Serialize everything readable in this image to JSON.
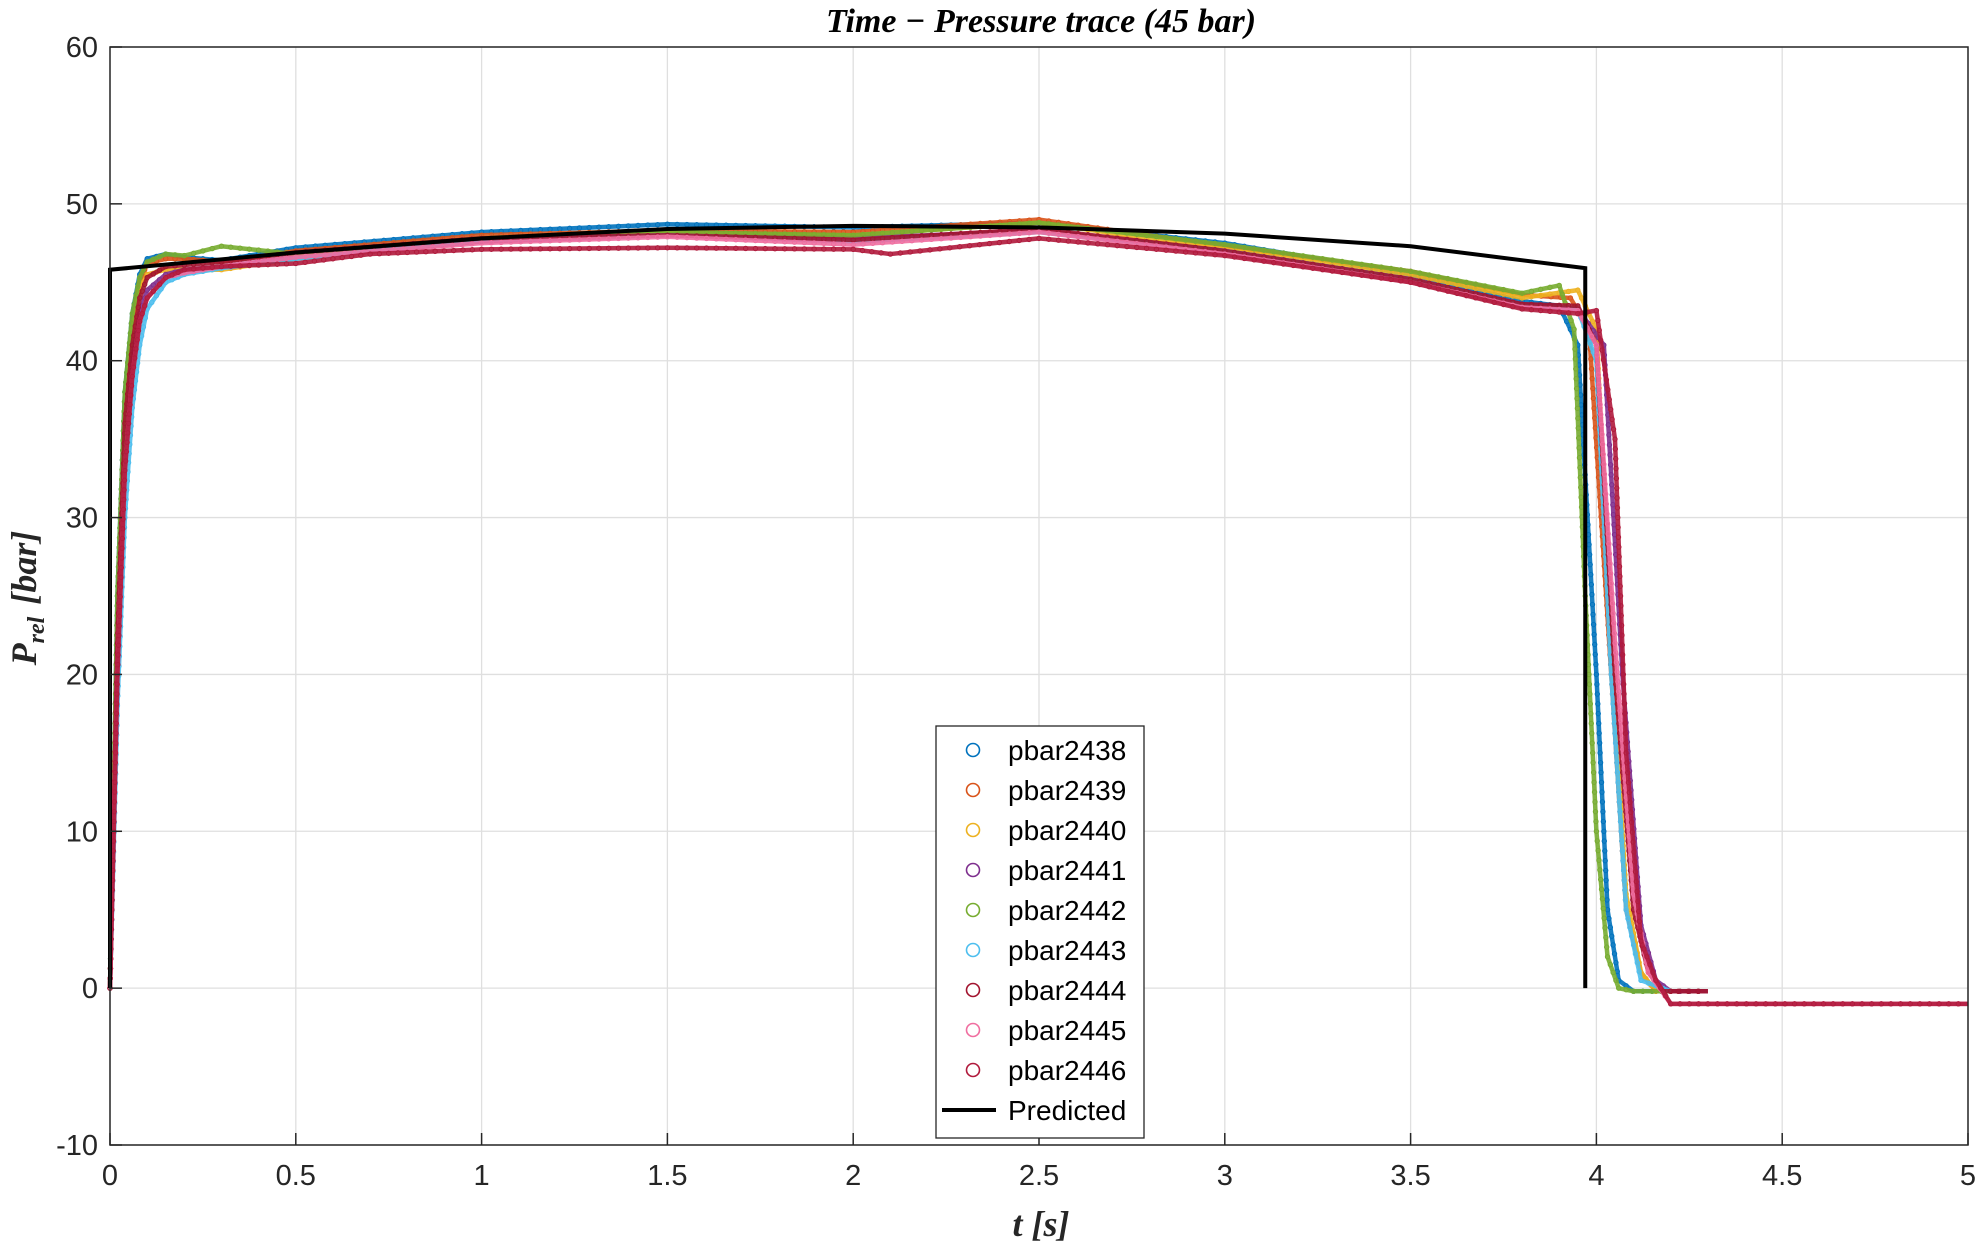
{
  "chart_data": {
    "type": "scatter",
    "title": "Time − Pressure trace (45 bar)",
    "xlabel": "t [s]",
    "ylabel": "P_rel [bar]",
    "ylabel_main": "P",
    "ylabel_sub": "rel",
    "ylabel_unit": "[bar]",
    "xlim": [
      0,
      5
    ],
    "ylim": [
      -10,
      60
    ],
    "x_ticks": [
      "0",
      "0.5",
      "1",
      "1.5",
      "2",
      "2.5",
      "3",
      "3.5",
      "4",
      "4.5",
      "5"
    ],
    "y_ticks": [
      "-10",
      "0",
      "10",
      "20",
      "30",
      "40",
      "50",
      "60"
    ],
    "grid": true,
    "legend_position": "bottom-center",
    "series": [
      {
        "name": "pbar2438",
        "color": "#0072BD",
        "marker": "circle",
        "x": [
          0,
          0.02,
          0.04,
          0.06,
          0.08,
          0.1,
          0.15,
          0.2,
          0.3,
          0.5,
          1.0,
          1.5,
          2.0,
          2.5,
          3.0,
          3.5,
          3.8,
          3.9,
          3.95,
          4.0,
          4.03,
          4.06,
          4.1,
          4.15,
          4.2,
          4.3
        ],
        "y": [
          0,
          25,
          38,
          43,
          45.5,
          46.5,
          46.8,
          46.6,
          46.4,
          47.2,
          48.2,
          48.7,
          48.5,
          48.8,
          47.5,
          45.5,
          43.8,
          43.5,
          41,
          20,
          5,
          0.5,
          -0.2,
          -0.2,
          -0.2,
          -0.2
        ]
      },
      {
        "name": "pbar2439",
        "color": "#D95319",
        "marker": "circle",
        "x": [
          0,
          0.02,
          0.04,
          0.06,
          0.08,
          0.1,
          0.15,
          0.2,
          0.3,
          0.5,
          1.0,
          1.5,
          2.0,
          2.5,
          3.0,
          3.5,
          3.8,
          3.93,
          3.98,
          4.04,
          4.08,
          4.12,
          4.16,
          4.2,
          4.3
        ],
        "y": [
          0,
          22,
          36,
          42,
          45,
          46.2,
          46.5,
          46.5,
          46.3,
          47.0,
          48.0,
          48.3,
          48.2,
          49.0,
          47.3,
          45.7,
          44.2,
          44.0,
          42,
          20,
          5,
          1,
          -0.2,
          -0.2,
          -0.2
        ]
      },
      {
        "name": "pbar2440",
        "color": "#EDB120",
        "marker": "circle",
        "x": [
          0,
          0.02,
          0.04,
          0.06,
          0.08,
          0.1,
          0.15,
          0.2,
          0.3,
          0.5,
          1.0,
          1.5,
          2.0,
          2.5,
          3.0,
          3.5,
          3.8,
          3.95,
          4.0,
          4.04,
          4.08,
          4.12,
          4.16,
          4.2,
          4.3
        ],
        "y": [
          0,
          22,
          36,
          42,
          44.5,
          45.5,
          45.8,
          45.8,
          45.8,
          46.5,
          47.8,
          48.1,
          48.0,
          48.8,
          47.1,
          45.5,
          44.0,
          44.5,
          42,
          22,
          6,
          1,
          -0.2,
          -0.2,
          -0.2
        ]
      },
      {
        "name": "pbar2441",
        "color": "#7E2F8E",
        "marker": "circle",
        "x": [
          0,
          0.02,
          0.04,
          0.06,
          0.08,
          0.1,
          0.15,
          0.2,
          0.3,
          0.5,
          1.0,
          1.5,
          2.0,
          2.5,
          3.0,
          3.5,
          3.8,
          3.95,
          4.02,
          4.07,
          4.12,
          4.16,
          4.2,
          4.3
        ],
        "y": [
          0,
          20,
          34,
          40,
          43,
          44.5,
          45.5,
          45.8,
          46,
          46.6,
          47.6,
          48.0,
          47.8,
          48.3,
          47.0,
          45.2,
          43.6,
          43.3,
          41,
          20,
          4,
          0.5,
          -0.2,
          -0.2
        ]
      },
      {
        "name": "pbar2442",
        "color": "#77AC30",
        "marker": "circle",
        "x": [
          0,
          0.02,
          0.04,
          0.06,
          0.08,
          0.1,
          0.15,
          0.2,
          0.25,
          0.3,
          0.5,
          1.0,
          1.5,
          2.0,
          2.5,
          3.0,
          3.5,
          3.8,
          3.9,
          3.94,
          3.97,
          4.0,
          4.03,
          4.06,
          4.1,
          4.2
        ],
        "y": [
          0,
          25,
          38,
          43,
          45.3,
          46.3,
          46.8,
          46.7,
          47.0,
          47.3,
          46.8,
          47.8,
          48.2,
          48.0,
          48.8,
          47.4,
          45.7,
          44.3,
          44.8,
          42,
          25,
          10,
          2,
          0,
          -0.2,
          -0.2
        ]
      },
      {
        "name": "pbar2443",
        "color": "#4DBEEE",
        "marker": "circle",
        "x": [
          0,
          0.02,
          0.04,
          0.06,
          0.08,
          0.1,
          0.15,
          0.2,
          0.3,
          0.5,
          1.0,
          1.5,
          2.0,
          2.5,
          3.0,
          3.5,
          3.8,
          3.95,
          4.0,
          4.04,
          4.08,
          4.12,
          4.2
        ],
        "y": [
          0,
          18,
          30,
          37,
          41,
          43.3,
          45,
          45.5,
          45.9,
          46.5,
          47.7,
          48.0,
          47.6,
          48.2,
          47.0,
          45.2,
          43.5,
          43.3,
          40,
          20,
          5,
          0.5,
          -0.2
        ]
      },
      {
        "name": "pbar2444",
        "color": "#A2142F",
        "marker": "circle",
        "x": [
          0,
          0.02,
          0.04,
          0.06,
          0.08,
          0.1,
          0.15,
          0.2,
          0.3,
          0.5,
          1.0,
          1.5,
          2.0,
          2.5,
          3.0,
          3.5,
          3.8,
          3.95,
          4.0,
          4.05,
          4.1,
          4.14,
          4.18,
          4.22,
          4.3
        ],
        "y": [
          0,
          22,
          36,
          41,
          44,
          45.3,
          46.0,
          46.1,
          46.3,
          46.9,
          47.8,
          48.0,
          47.7,
          48.4,
          47.0,
          45.2,
          43.6,
          43.5,
          41,
          20,
          5,
          1,
          -0.2,
          -0.2,
          -0.2
        ]
      },
      {
        "name": "pbar2445",
        "color": "#F06EA0",
        "marker": "circle",
        "x": [
          0,
          0.02,
          0.04,
          0.06,
          0.08,
          0.1,
          0.15,
          0.2,
          0.3,
          0.5,
          1.0,
          1.5,
          2.0,
          2.5,
          3.0,
          3.5,
          3.8,
          3.95,
          4.0,
          4.05,
          4.1,
          4.14,
          4.2,
          4.3,
          5.0
        ],
        "y": [
          0,
          20,
          33,
          39,
          42.5,
          44,
          45.3,
          45.6,
          46,
          46.6,
          47.5,
          47.9,
          47.4,
          48.2,
          46.8,
          45.0,
          43.4,
          43.2,
          41,
          22,
          6,
          1,
          -1,
          -1,
          -1
        ]
      },
      {
        "name": "pbar2446",
        "color": "#B01A3C",
        "marker": "circle",
        "x": [
          0,
          0.02,
          0.04,
          0.06,
          0.08,
          0.1,
          0.15,
          0.2,
          0.3,
          0.5,
          0.7,
          1.0,
          1.5,
          2.0,
          2.1,
          2.5,
          3.0,
          3.5,
          3.8,
          3.95,
          4.0,
          4.05,
          4.08,
          4.12,
          4.16,
          4.2,
          4.3,
          5.0
        ],
        "y": [
          0,
          20,
          33,
          39,
          42.5,
          44,
          45.3,
          45.8,
          46,
          46.2,
          46.8,
          47.1,
          47.2,
          47.1,
          46.8,
          47.8,
          46.7,
          45.0,
          43.3,
          43.0,
          43.2,
          35,
          15,
          3,
          0.5,
          -1,
          -1,
          -1
        ]
      },
      {
        "name": "Predicted",
        "color": "#000000",
        "marker": "line",
        "x": [
          0,
          0.0,
          0.5,
          1.0,
          1.5,
          2.0,
          2.5,
          3.0,
          3.5,
          3.97,
          3.97
        ],
        "y": [
          0,
          45.8,
          46.9,
          47.8,
          48.4,
          48.6,
          48.5,
          48.1,
          47.3,
          45.9,
          0
        ]
      }
    ]
  }
}
